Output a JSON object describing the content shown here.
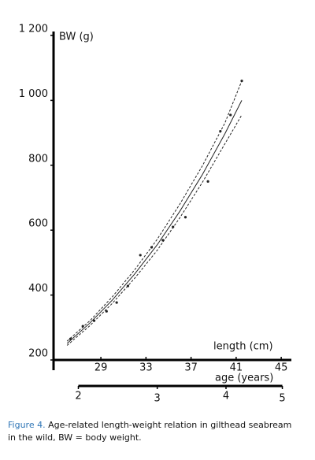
{
  "chart_data": {
    "type": "scatter",
    "ylabel": "BW (g)",
    "xlabel": "length (cm)",
    "x2label": "age (years)",
    "ylim": [
      200,
      1200
    ],
    "yticks": [
      200,
      400,
      600,
      800,
      {
        "value": 1000,
        "label": "1 000"
      },
      {
        "value": 1200,
        "label": "1 200"
      }
    ],
    "xlim": [
      24.8,
      45.9
    ],
    "xticks": [
      29,
      33,
      37,
      41,
      45
    ],
    "age_ticks": [
      {
        "value": 27,
        "label": "2"
      },
      {
        "value": 34,
        "label": "3"
      },
      {
        "value": 40.1,
        "label": "4"
      },
      {
        "value": 45.1,
        "label": "5"
      }
    ],
    "points": {
      "color": "#222222",
      "x": [
        26.3,
        27.4,
        28.4,
        29.5,
        30.4,
        31.4,
        32.5,
        33.5,
        34.5,
        35.4,
        36.5,
        38.5,
        39.6,
        40.5,
        41.5
      ],
      "values": [
        265,
        304,
        321,
        350,
        377,
        428,
        523,
        547,
        569,
        610,
        640,
        750,
        905,
        955,
        1060
      ]
    },
    "series": [
      {
        "style": "solid",
        "color": "#222222",
        "x": [
          26,
          28,
          30,
          32,
          34,
          36,
          38,
          40,
          41.5
        ],
        "values": [
          251,
          313,
          384,
          465,
          555,
          658,
          771,
          897,
          1000
        ]
      },
      {
        "style": "dashed",
        "color": "#222222",
        "x": [
          26,
          28,
          30,
          32,
          34,
          36,
          38,
          40,
          41.5
        ],
        "values": [
          258,
          320,
          394,
          478,
          572,
          680,
          798,
          930,
          1060
        ]
      },
      {
        "style": "dashed",
        "color": "#222222",
        "x": [
          26,
          28,
          30,
          32,
          34,
          36,
          38,
          40,
          41.5
        ],
        "values": [
          245,
          305,
          374,
          452,
          538,
          638,
          747,
          866,
          955
        ]
      }
    ],
    "caption": {
      "label": "Figure 4.",
      "text": " Age-related length-weight relation in gilthead seabream",
      "text2": "in the wild, BW = body weight."
    }
  }
}
